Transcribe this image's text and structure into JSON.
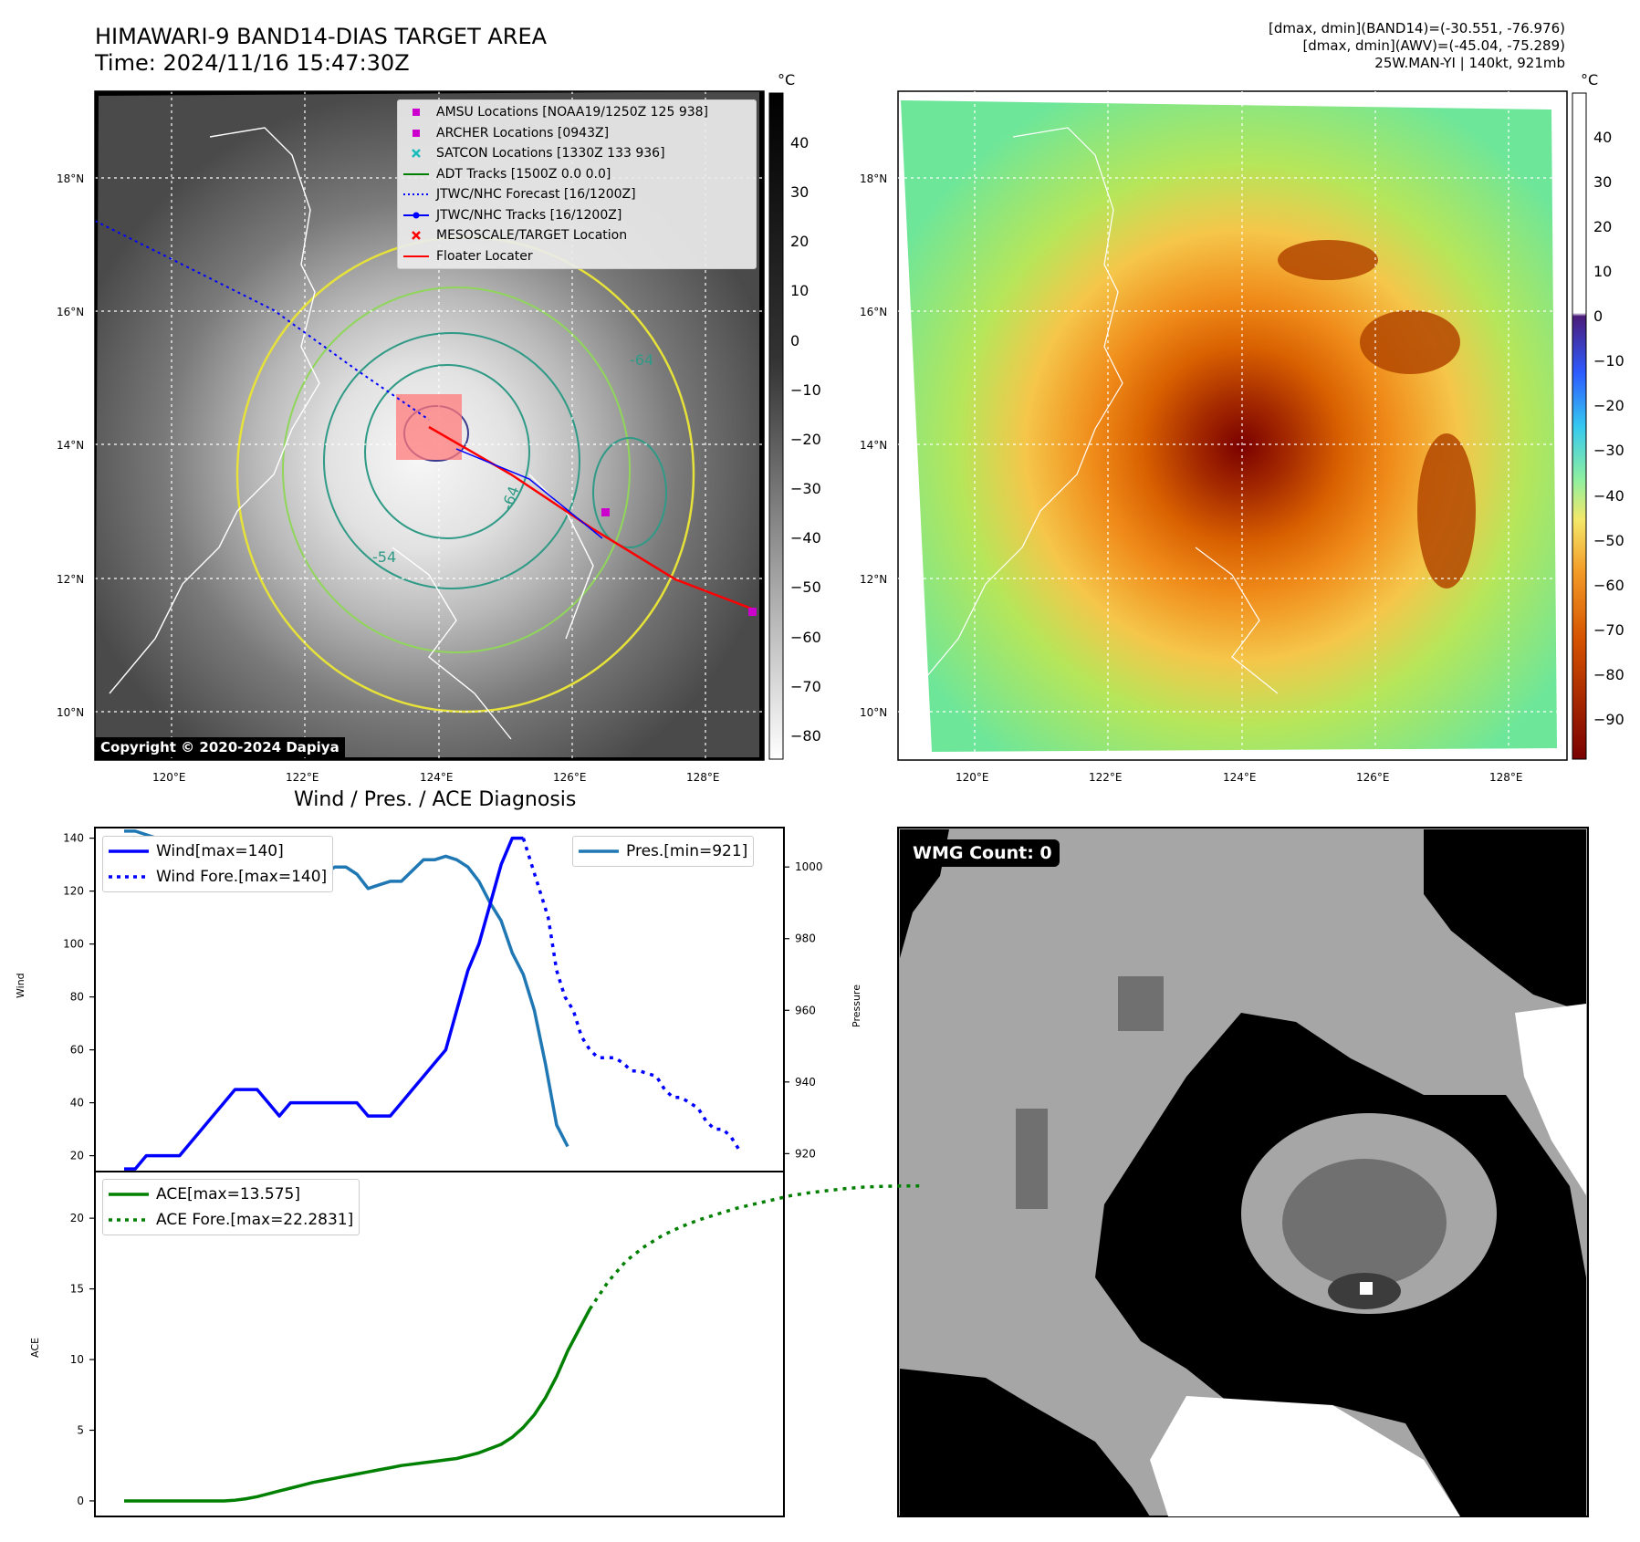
{
  "header": {
    "title_line1": "HIMAWARI-9 BAND14-DIAS TARGET AREA",
    "title_line2": "Time: 2024/11/16 15:47:30Z",
    "info_line1": "[dmax, dmin](BAND14)=(-30.551, -76.976)",
    "info_line2": "[dmax, dmin](AWV)=(-45.04, -75.289)",
    "info_line3": "25W.MAN-YI | 140kt, 921mb"
  },
  "map": {
    "lat_labels": [
      "18°N",
      "16°N",
      "14°N",
      "12°N",
      "10°N"
    ],
    "lon_labels": [
      "120°E",
      "122°E",
      "124°E",
      "126°E",
      "128°E"
    ],
    "copyright": "Copyright © 2020-2024 Dapiya",
    "legend": [
      {
        "label": "AMSU Locations [NOAA19/1250Z 125 938]",
        "marker": "square",
        "color": "#cc00cc"
      },
      {
        "label": "ARCHER Locations [0943Z]",
        "marker": "square",
        "color": "#cc00cc"
      },
      {
        "label": "SATCON Locations [1330Z 133 936]",
        "marker": "x",
        "color": "#17bbbb"
      },
      {
        "label": "ADT Tracks [1500Z 0.0 0.0]",
        "marker": "line",
        "color": "#008000"
      },
      {
        "label": "JTWC/NHC Forecast [16/1200Z]",
        "marker": "dotted",
        "color": "#0000ff"
      },
      {
        "label": "JTWC/NHC Tracks [16/1200Z]",
        "marker": "line-dot",
        "color": "#0000ff"
      },
      {
        "label": "MESOSCALE/TARGET Location",
        "marker": "x",
        "color": "#ff0000"
      },
      {
        "label": "Floater Locater",
        "marker": "line",
        "color": "#ff0000"
      }
    ],
    "contour_labels": [
      "-64",
      "-54",
      "-64"
    ]
  },
  "colorbar_left": {
    "unit": "°C",
    "ticks": [
      "40",
      "30",
      "20",
      "10",
      "0",
      "−10",
      "−20",
      "−30",
      "−40",
      "−50",
      "−60",
      "−70",
      "−80"
    ]
  },
  "colorbar_right": {
    "unit": "°C",
    "ticks": [
      "40",
      "30",
      "20",
      "10",
      "0",
      "−10",
      "−20",
      "−30",
      "−40",
      "−50",
      "−60",
      "−70",
      "−80",
      "−90"
    ]
  },
  "wmg": {
    "label": "WMG Count: 0"
  },
  "colors": {
    "wind": "#0000ff",
    "pressure": "#1f77b4",
    "ace": "#008000"
  },
  "chart_data": [
    {
      "type": "line",
      "title": "Wind / Pres. / ACE Diagnosis",
      "ylabel": "Wind",
      "y2label": "Pressure",
      "ylim": [
        14,
        144
      ],
      "y2lim": [
        915,
        1011
      ],
      "yticks": [
        "20",
        "40",
        "60",
        "80",
        "100",
        "120",
        "140"
      ],
      "y2ticks": [
        "920",
        "940",
        "960",
        "980",
        "1000"
      ],
      "series": [
        {
          "name": "Wind[max=140]",
          "axis": "left",
          "style": "solid",
          "values": [
            15,
            15,
            20,
            20,
            20,
            20,
            25,
            30,
            35,
            40,
            45,
            45,
            45,
            40,
            35,
            40,
            40,
            40,
            40,
            40,
            40,
            40,
            35,
            35,
            35,
            40,
            45,
            50,
            55,
            60,
            75,
            90,
            100,
            115,
            130,
            140,
            140
          ]
        },
        {
          "name": "Wind Fore.[max=140]",
          "axis": "left",
          "style": "dotted",
          "values": [
            140,
            130,
            120,
            110,
            90,
            80,
            75,
            65,
            60,
            57,
            57,
            57,
            55,
            52,
            52,
            51,
            50,
            45,
            42,
            42,
            40,
            38,
            33,
            30,
            30,
            27,
            22
          ],
          "start_index": 36,
          "step": 0.75
        },
        {
          "name": "Pres.[min=921]",
          "axis": "right",
          "style": "solid",
          "values": [
            1010,
            1010,
            1009,
            1008,
            1008,
            1008,
            1006,
            1006,
            1005,
            1004,
            1004,
            1003,
            1002,
            1001,
            999,
            996,
            996,
            997,
            998,
            1000,
            1000,
            998,
            994,
            995,
            996,
            996,
            999,
            1002,
            1002,
            1003,
            1002,
            1000,
            996,
            990,
            985,
            976,
            970,
            960,
            945,
            928,
            922
          ]
        }
      ]
    },
    {
      "type": "line",
      "ylabel": "ACE",
      "ylim": [
        -1.1,
        23.3
      ],
      "yticks": [
        "0",
        "5",
        "10",
        "15",
        "20"
      ],
      "series": [
        {
          "name": "ACE[max=13.575]",
          "style": "solid",
          "values": [
            0,
            0,
            0,
            0,
            0,
            0,
            0,
            0,
            0,
            0,
            0.05,
            0.15,
            0.3,
            0.5,
            0.7,
            0.9,
            1.1,
            1.3,
            1.45,
            1.6,
            1.75,
            1.9,
            2.05,
            2.2,
            2.35,
            2.5,
            2.6,
            2.7,
            2.8,
            2.9,
            3.0,
            3.2,
            3.4,
            3.7,
            4.0,
            4.5,
            5.2,
            6.1,
            7.3,
            8.8,
            10.6,
            12.1,
            13.575
          ]
        },
        {
          "name": "ACE Fore.[max=22.2831]",
          "style": "dotted",
          "values": [
            13.575,
            15.5,
            17.0,
            18.0,
            18.8,
            19.4,
            19.9,
            20.3,
            20.7,
            21.0,
            21.3,
            21.6,
            21.8,
            21.95,
            22.1,
            22.2,
            22.25,
            22.28,
            22.2831
          ],
          "start_index": 42,
          "step": 1.65
        }
      ]
    }
  ]
}
